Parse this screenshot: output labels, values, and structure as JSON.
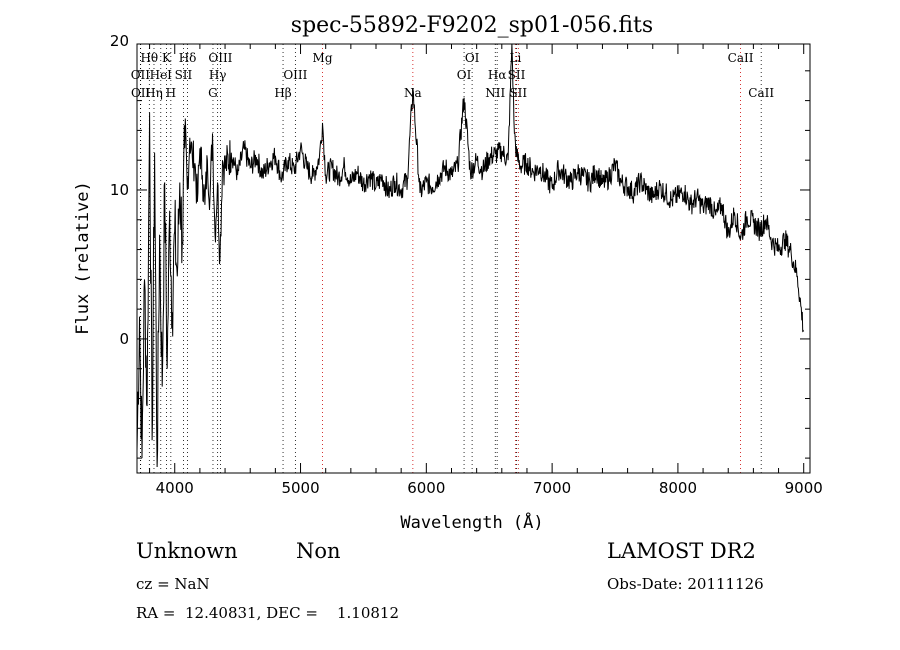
{
  "chart_data": {
    "type": "line",
    "title": "spec-55892-F9202_sp01-056.fits",
    "xlabel": "Wavelength (Å)",
    "ylabel": "Flux (relative)",
    "xlim": [
      3700,
      9050
    ],
    "ylim": [
      -9,
      19.8
    ],
    "xticks": [
      4000,
      5000,
      6000,
      7000,
      8000,
      9000
    ],
    "yticks": [
      0,
      10,
      20
    ],
    "grid": false,
    "legend": "none",
    "line_color": "#000000",
    "marker_color": "#000000",
    "marker_alt_color": "#cc0000",
    "lines": [
      {
        "label": "Hθ",
        "wavelength": 3798,
        "row": 1
      },
      {
        "label": "OII",
        "wavelength": 3727,
        "row": 2
      },
      {
        "label": "OII",
        "wavelength": 3729,
        "row": 3
      },
      {
        "label": "K",
        "wavelength": 3934,
        "row": 1
      },
      {
        "label": "HeI",
        "wavelength": 3889,
        "row": 2
      },
      {
        "label": "Hη",
        "wavelength": 3835,
        "row": 3
      },
      {
        "label": "SII",
        "wavelength": 4069,
        "row": 2
      },
      {
        "label": "H",
        "wavelength": 3969,
        "row": 3
      },
      {
        "label": "Hδ",
        "wavelength": 4102,
        "row": 1
      },
      {
        "label": "OIII",
        "wavelength": 4363,
        "row": 1
      },
      {
        "label": "Hγ",
        "wavelength": 4341,
        "row": 2
      },
      {
        "label": "G",
        "wavelength": 4304,
        "row": 3
      },
      {
        "label": "Mg",
        "wavelength": 5175,
        "row": 1
      },
      {
        "label": "OIII",
        "wavelength": 4959,
        "row": 2
      },
      {
        "label": "Hβ",
        "wavelength": 4861,
        "row": 3
      },
      {
        "label": "Na",
        "wavelength": 5893,
        "row": 3
      },
      {
        "label": "OI",
        "wavelength": 6364,
        "row": 1
      },
      {
        "label": "OI",
        "wavelength": 6300,
        "row": 2
      },
      {
        "label": "Hα",
        "wavelength": 6563,
        "row": 2
      },
      {
        "label": "NII",
        "wavelength": 6548,
        "row": 3
      },
      {
        "label": "Li",
        "wavelength": 6708,
        "row": 1
      },
      {
        "label": "SII",
        "wavelength": 6717,
        "row": 2
      },
      {
        "label": "SII",
        "wavelength": 6731,
        "row": 3
      },
      {
        "label": "CaII",
        "wavelength": 8498,
        "row": 1
      },
      {
        "label": "CaII",
        "wavelength": 8662,
        "row": 3
      }
    ],
    "marker_lines": [
      {
        "wavelength": 3727,
        "alt": false
      },
      {
        "wavelength": 3729,
        "alt": false
      },
      {
        "wavelength": 3798,
        "alt": false
      },
      {
        "wavelength": 3835,
        "alt": false
      },
      {
        "wavelength": 3889,
        "alt": false
      },
      {
        "wavelength": 3934,
        "alt": false
      },
      {
        "wavelength": 3969,
        "alt": false
      },
      {
        "wavelength": 4069,
        "alt": false
      },
      {
        "wavelength": 4102,
        "alt": false
      },
      {
        "wavelength": 4304,
        "alt": false
      },
      {
        "wavelength": 4341,
        "alt": false
      },
      {
        "wavelength": 4363,
        "alt": false
      },
      {
        "wavelength": 4861,
        "alt": false
      },
      {
        "wavelength": 4959,
        "alt": false
      },
      {
        "wavelength": 5175,
        "alt": true
      },
      {
        "wavelength": 5893,
        "alt": true
      },
      {
        "wavelength": 6300,
        "alt": false
      },
      {
        "wavelength": 6364,
        "alt": false
      },
      {
        "wavelength": 6548,
        "alt": false
      },
      {
        "wavelength": 6563,
        "alt": false
      },
      {
        "wavelength": 6708,
        "alt": true
      },
      {
        "wavelength": 6717,
        "alt": false
      },
      {
        "wavelength": 6731,
        "alt": true
      },
      {
        "wavelength": 8498,
        "alt": true
      },
      {
        "wavelength": 8662,
        "alt": false
      }
    ],
    "series": [
      {
        "x": [
          3700,
          3720,
          3740,
          3760,
          3780,
          3800,
          3820,
          3840,
          3860,
          3880,
          3900,
          3920,
          3940,
          3960,
          3980,
          4000,
          4020,
          4040,
          4060,
          4080,
          4100,
          4120,
          4140,
          4160,
          4180,
          4200,
          4220,
          4240,
          4260,
          4280,
          4300,
          4320,
          4340,
          4360,
          4380,
          4400,
          4450,
          4500,
          4550,
          4600,
          4650,
          4700,
          4750,
          4800,
          4850,
          4900,
          4950,
          5000,
          5050,
          5100,
          5150,
          5175,
          5200,
          5250,
          5300,
          5350,
          5400,
          5450,
          5500,
          5550,
          5600,
          5650,
          5700,
          5750,
          5800,
          5850,
          5893,
          5950,
          6000,
          6050,
          6100,
          6150,
          6200,
          6250,
          6300,
          6350,
          6400,
          6450,
          6500,
          6550,
          6600,
          6650,
          6680,
          6700,
          6720,
          6750,
          6800,
          6850,
          6900,
          6950,
          7000,
          7050,
          7100,
          7150,
          7200,
          7250,
          7300,
          7350,
          7400,
          7450,
          7500,
          7550,
          7600,
          7650,
          7700,
          7750,
          7800,
          7850,
          7900,
          7950,
          8000,
          8050,
          8100,
          8150,
          8200,
          8250,
          8300,
          8350,
          8400,
          8450,
          8500,
          8550,
          8600,
          8650,
          8700,
          8750,
          8800,
          8850,
          8900,
          8950,
          9000
        ],
        "y": [
          -7.5,
          1.5,
          -8.0,
          4.0,
          -4.5,
          15.2,
          -6.8,
          12.5,
          -8.6,
          7.0,
          -3.2,
          10.5,
          -2.0,
          8.6,
          1.8,
          7.2,
          4.2,
          10.5,
          6.5,
          12.8,
          10.0,
          13.5,
          12.2,
          11.8,
          9.2,
          12.8,
          11.0,
          9.0,
          12.0,
          9.5,
          13.8,
          7.0,
          10.5,
          5.4,
          12.0,
          11.5,
          12.5,
          11.0,
          12.8,
          11.5,
          12.2,
          11.0,
          11.8,
          12.3,
          10.8,
          12.0,
          11.3,
          12.8,
          11.5,
          10.9,
          12.2,
          14.5,
          11.0,
          11.5,
          10.8,
          11.6,
          10.5,
          11.2,
          10.4,
          11.0,
          10.2,
          10.9,
          9.8,
          10.6,
          10.0,
          10.8,
          16.8,
          9.8,
          10.5,
          10.2,
          10.9,
          11.5,
          11.0,
          11.6,
          16.2,
          11.2,
          12.0,
          11.3,
          12.2,
          12.4,
          12.6,
          12.0,
          19.8,
          13.8,
          12.2,
          11.6,
          11.8,
          11.2,
          11.5,
          10.8,
          10.2,
          11.4,
          11.0,
          10.5,
          11.2,
          10.9,
          10.5,
          11.3,
          10.4,
          10.8,
          11.7,
          10.5,
          10.2,
          9.8,
          10.6,
          10.0,
          9.5,
          10.2,
          9.8,
          9.3,
          9.6,
          9.9,
          9.0,
          9.5,
          8.8,
          9.2,
          8.3,
          9.0,
          7.0,
          8.5,
          6.8,
          8.2,
          7.8,
          7.3,
          8.0,
          6.5,
          6.0,
          6.7,
          5.8,
          4.2,
          0.5
        ]
      }
    ]
  },
  "footer": {
    "object_class": "Unknown",
    "object_subclass": "Non",
    "survey": "LAMOST DR2",
    "cz": "cz = NaN",
    "obs_date": "Obs-Date: 20111126",
    "coords": "RA =  12.40831, DEC =    1.10812"
  }
}
